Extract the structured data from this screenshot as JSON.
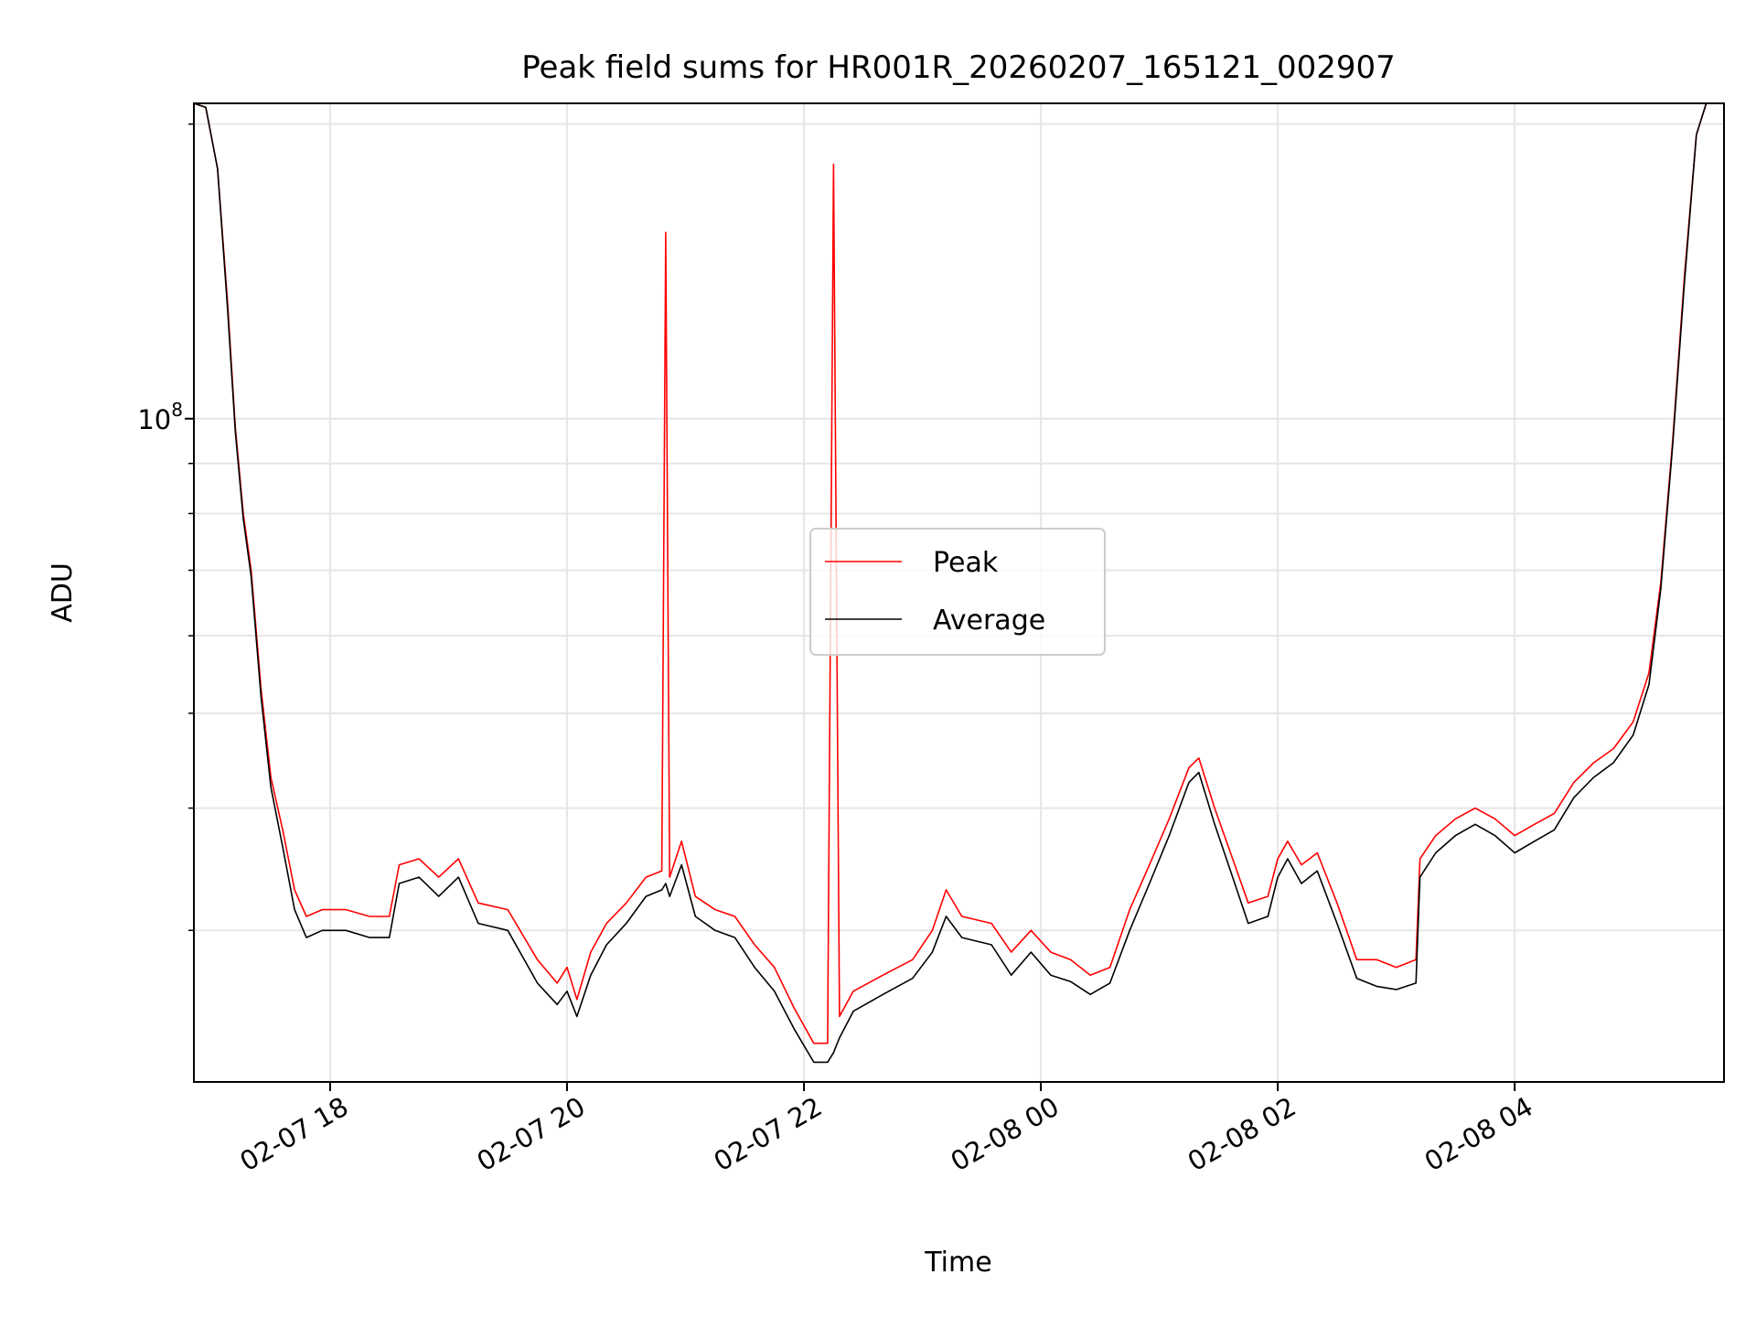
{
  "chart_data": {
    "type": "line",
    "title": "Peak field sums for HR001R_20260207_165121_002907",
    "xlabel": "Time",
    "ylabel": "ADU",
    "yscale": "log",
    "grid": true,
    "legend_placement": "center",
    "x_tick_labels": [
      "02-07 18",
      "02-07 20",
      "02-07 22",
      "02-08 00",
      "02-08 02",
      "02-08 04"
    ],
    "x_ticks": [
      "2026-02-07 18:00",
      "2026-02-07 20:00",
      "2026-02-07 22:00",
      "2026-02-08 00:00",
      "2026-02-08 02:00",
      "2026-02-08 04:00"
    ],
    "xlim": [
      "2026-02-07 16:51",
      "2026-02-08 05:46"
    ],
    "y_tick_label_main": "10",
    "y_tick_label_exp": "8",
    "ylim": [
      21000000,
      210000000
    ],
    "series": [
      {
        "name": "Peak",
        "color": "#ff0000",
        "points": [
          [
            "2026-02-07 16:51",
            210000000
          ],
          [
            "2026-02-07 16:57",
            208000000
          ],
          [
            "2026-02-07 17:03",
            180000000
          ],
          [
            "2026-02-07 17:08",
            132000000
          ],
          [
            "2026-02-07 17:12",
            98000000
          ],
          [
            "2026-02-07 17:16",
            80000000
          ],
          [
            "2026-02-07 17:20",
            70000000
          ],
          [
            "2026-02-07 17:25",
            53000000
          ],
          [
            "2026-02-07 17:30",
            43000000
          ],
          [
            "2026-02-07 17:36",
            38000000
          ],
          [
            "2026-02-07 17:42",
            33000000
          ],
          [
            "2026-02-07 17:48",
            31000000
          ],
          [
            "2026-02-07 17:56",
            31500000
          ],
          [
            "2026-02-07 18:08",
            31500000
          ],
          [
            "2026-02-07 18:20",
            31000000
          ],
          [
            "2026-02-07 18:30",
            31000000
          ],
          [
            "2026-02-07 18:35",
            35000000
          ],
          [
            "2026-02-07 18:45",
            35500000
          ],
          [
            "2026-02-07 18:55",
            34000000
          ],
          [
            "2026-02-07 19:05",
            35500000
          ],
          [
            "2026-02-07 19:15",
            32000000
          ],
          [
            "2026-02-07 19:30",
            31500000
          ],
          [
            "2026-02-07 19:45",
            28000000
          ],
          [
            "2026-02-07 19:55",
            26500000
          ],
          [
            "2026-02-07 20:00",
            27500000
          ],
          [
            "2026-02-07 20:05",
            25500000
          ],
          [
            "2026-02-07 20:12",
            28500000
          ],
          [
            "2026-02-07 20:20",
            30500000
          ],
          [
            "2026-02-07 20:30",
            32000000
          ],
          [
            "2026-02-07 20:40",
            34000000
          ],
          [
            "2026-02-07 20:48",
            34500000
          ],
          [
            "2026-02-07 20:50",
            155000000
          ],
          [
            "2026-02-07 20:52",
            34000000
          ],
          [
            "2026-02-07 20:58",
            37000000
          ],
          [
            "2026-02-07 21:05",
            32500000
          ],
          [
            "2026-02-07 21:15",
            31500000
          ],
          [
            "2026-02-07 21:25",
            31000000
          ],
          [
            "2026-02-07 21:35",
            29000000
          ],
          [
            "2026-02-07 21:45",
            27500000
          ],
          [
            "2026-02-07 21:55",
            25000000
          ],
          [
            "2026-02-07 22:05",
            23000000
          ],
          [
            "2026-02-07 22:12",
            23000000
          ],
          [
            "2026-02-07 22:15",
            182000000
          ],
          [
            "2026-02-07 22:18",
            24500000
          ],
          [
            "2026-02-07 22:25",
            26000000
          ],
          [
            "2026-02-07 22:40",
            27000000
          ],
          [
            "2026-02-07 22:55",
            28000000
          ],
          [
            "2026-02-07 23:05",
            30000000
          ],
          [
            "2026-02-07 23:12",
            33000000
          ],
          [
            "2026-02-07 23:20",
            31000000
          ],
          [
            "2026-02-07 23:35",
            30500000
          ],
          [
            "2026-02-07 23:45",
            28500000
          ],
          [
            "2026-02-07 23:55",
            30000000
          ],
          [
            "2026-02-08 00:05",
            28500000
          ],
          [
            "2026-02-08 00:15",
            28000000
          ],
          [
            "2026-02-08 00:25",
            27000000
          ],
          [
            "2026-02-08 00:35",
            27500000
          ],
          [
            "2026-02-08 00:45",
            31500000
          ],
          [
            "2026-02-08 00:55",
            35000000
          ],
          [
            "2026-02-08 01:05",
            39000000
          ],
          [
            "2026-02-08 01:15",
            44000000
          ],
          [
            "2026-02-08 01:20",
            45000000
          ],
          [
            "2026-02-08 01:28",
            40000000
          ],
          [
            "2026-02-08 01:35",
            36500000
          ],
          [
            "2026-02-08 01:45",
            32000000
          ],
          [
            "2026-02-08 01:55",
            32500000
          ],
          [
            "2026-02-08 02:00",
            35500000
          ],
          [
            "2026-02-08 02:05",
            37000000
          ],
          [
            "2026-02-08 02:12",
            35000000
          ],
          [
            "2026-02-08 02:20",
            36000000
          ],
          [
            "2026-02-08 02:30",
            32000000
          ],
          [
            "2026-02-08 02:40",
            28000000
          ],
          [
            "2026-02-08 02:50",
            28000000
          ],
          [
            "2026-02-08 03:00",
            27500000
          ],
          [
            "2026-02-08 03:10",
            28000000
          ],
          [
            "2026-02-08 03:12",
            35500000
          ],
          [
            "2026-02-08 03:20",
            37500000
          ],
          [
            "2026-02-08 03:30",
            39000000
          ],
          [
            "2026-02-08 03:40",
            40000000
          ],
          [
            "2026-02-08 03:50",
            39000000
          ],
          [
            "2026-02-08 04:00",
            37500000
          ],
          [
            "2026-02-08 04:10",
            38500000
          ],
          [
            "2026-02-08 04:20",
            39500000
          ],
          [
            "2026-02-08 04:30",
            42500000
          ],
          [
            "2026-02-08 04:40",
            44500000
          ],
          [
            "2026-02-08 04:50",
            46000000
          ],
          [
            "2026-02-08 05:00",
            49000000
          ],
          [
            "2026-02-08 05:08",
            55000000
          ],
          [
            "2026-02-08 05:14",
            68000000
          ],
          [
            "2026-02-08 05:20",
            95000000
          ],
          [
            "2026-02-08 05:26",
            140000000
          ],
          [
            "2026-02-08 05:32",
            195000000
          ],
          [
            "2026-02-08 05:37",
            210000000
          ],
          [
            "2026-02-08 05:46",
            210000000
          ]
        ]
      },
      {
        "name": "Average",
        "color": "#000000",
        "points": [
          [
            "2026-02-07 16:51",
            210000000
          ],
          [
            "2026-02-07 16:57",
            208000000
          ],
          [
            "2026-02-07 17:03",
            180000000
          ],
          [
            "2026-02-07 17:08",
            130000000
          ],
          [
            "2026-02-07 17:12",
            97000000
          ],
          [
            "2026-02-07 17:16",
            79000000
          ],
          [
            "2026-02-07 17:20",
            69000000
          ],
          [
            "2026-02-07 17:25",
            52000000
          ],
          [
            "2026-02-07 17:30",
            42000000
          ],
          [
            "2026-02-07 17:36",
            36500000
          ],
          [
            "2026-02-07 17:42",
            31500000
          ],
          [
            "2026-02-07 17:48",
            29500000
          ],
          [
            "2026-02-07 17:56",
            30000000
          ],
          [
            "2026-02-07 18:08",
            30000000
          ],
          [
            "2026-02-07 18:20",
            29500000
          ],
          [
            "2026-02-07 18:30",
            29500000
          ],
          [
            "2026-02-07 18:35",
            33500000
          ],
          [
            "2026-02-07 18:45",
            34000000
          ],
          [
            "2026-02-07 18:55",
            32500000
          ],
          [
            "2026-02-07 19:05",
            34000000
          ],
          [
            "2026-02-07 19:15",
            30500000
          ],
          [
            "2026-02-07 19:30",
            30000000
          ],
          [
            "2026-02-07 19:45",
            26500000
          ],
          [
            "2026-02-07 19:55",
            25200000
          ],
          [
            "2026-02-07 20:00",
            26000000
          ],
          [
            "2026-02-07 20:05",
            24500000
          ],
          [
            "2026-02-07 20:12",
            27000000
          ],
          [
            "2026-02-07 20:20",
            29000000
          ],
          [
            "2026-02-07 20:30",
            30500000
          ],
          [
            "2026-02-07 20:40",
            32500000
          ],
          [
            "2026-02-07 20:48",
            33000000
          ],
          [
            "2026-02-07 20:50",
            33500000
          ],
          [
            "2026-02-07 20:52",
            32500000
          ],
          [
            "2026-02-07 20:58",
            35000000
          ],
          [
            "2026-02-07 21:05",
            31000000
          ],
          [
            "2026-02-07 21:15",
            30000000
          ],
          [
            "2026-02-07 21:25",
            29500000
          ],
          [
            "2026-02-07 21:35",
            27500000
          ],
          [
            "2026-02-07 21:45",
            26000000
          ],
          [
            "2026-02-07 21:55",
            23800000
          ],
          [
            "2026-02-07 22:05",
            22000000
          ],
          [
            "2026-02-07 22:12",
            22000000
          ],
          [
            "2026-02-07 22:15",
            22500000
          ],
          [
            "2026-02-07 22:18",
            23300000
          ],
          [
            "2026-02-07 22:25",
            24800000
          ],
          [
            "2026-02-07 22:40",
            25800000
          ],
          [
            "2026-02-07 22:55",
            26800000
          ],
          [
            "2026-02-07 23:05",
            28500000
          ],
          [
            "2026-02-07 23:12",
            31000000
          ],
          [
            "2026-02-07 23:20",
            29500000
          ],
          [
            "2026-02-07 23:35",
            29000000
          ],
          [
            "2026-02-07 23:45",
            27000000
          ],
          [
            "2026-02-07 23:55",
            28500000
          ],
          [
            "2026-02-08 00:05",
            27000000
          ],
          [
            "2026-02-08 00:15",
            26600000
          ],
          [
            "2026-02-08 00:25",
            25800000
          ],
          [
            "2026-02-08 00:35",
            26500000
          ],
          [
            "2026-02-08 00:45",
            30000000
          ],
          [
            "2026-02-08 00:55",
            33500000
          ],
          [
            "2026-02-08 01:05",
            37500000
          ],
          [
            "2026-02-08 01:15",
            42500000
          ],
          [
            "2026-02-08 01:20",
            43500000
          ],
          [
            "2026-02-08 01:28",
            38500000
          ],
          [
            "2026-02-08 01:35",
            35000000
          ],
          [
            "2026-02-08 01:45",
            30500000
          ],
          [
            "2026-02-08 01:55",
            31000000
          ],
          [
            "2026-02-08 02:00",
            34000000
          ],
          [
            "2026-02-08 02:05",
            35500000
          ],
          [
            "2026-02-08 02:12",
            33500000
          ],
          [
            "2026-02-08 02:20",
            34500000
          ],
          [
            "2026-02-08 02:30",
            30500000
          ],
          [
            "2026-02-08 02:40",
            26800000
          ],
          [
            "2026-02-08 02:50",
            26300000
          ],
          [
            "2026-02-08 03:00",
            26100000
          ],
          [
            "2026-02-08 03:10",
            26500000
          ],
          [
            "2026-02-08 03:12",
            34000000
          ],
          [
            "2026-02-08 03:20",
            36000000
          ],
          [
            "2026-02-08 03:30",
            37500000
          ],
          [
            "2026-02-08 03:40",
            38500000
          ],
          [
            "2026-02-08 03:50",
            37500000
          ],
          [
            "2026-02-08 04:00",
            36000000
          ],
          [
            "2026-02-08 04:10",
            37000000
          ],
          [
            "2026-02-08 04:20",
            38000000
          ],
          [
            "2026-02-08 04:30",
            41000000
          ],
          [
            "2026-02-08 04:40",
            43000000
          ],
          [
            "2026-02-08 04:50",
            44500000
          ],
          [
            "2026-02-08 05:00",
            47500000
          ],
          [
            "2026-02-08 05:08",
            53500000
          ],
          [
            "2026-02-08 05:14",
            67000000
          ],
          [
            "2026-02-08 05:20",
            94000000
          ],
          [
            "2026-02-08 05:26",
            138000000
          ],
          [
            "2026-02-08 05:32",
            195000000
          ],
          [
            "2026-02-08 05:37",
            210000000
          ],
          [
            "2026-02-08 05:46",
            210000000
          ]
        ]
      }
    ]
  }
}
